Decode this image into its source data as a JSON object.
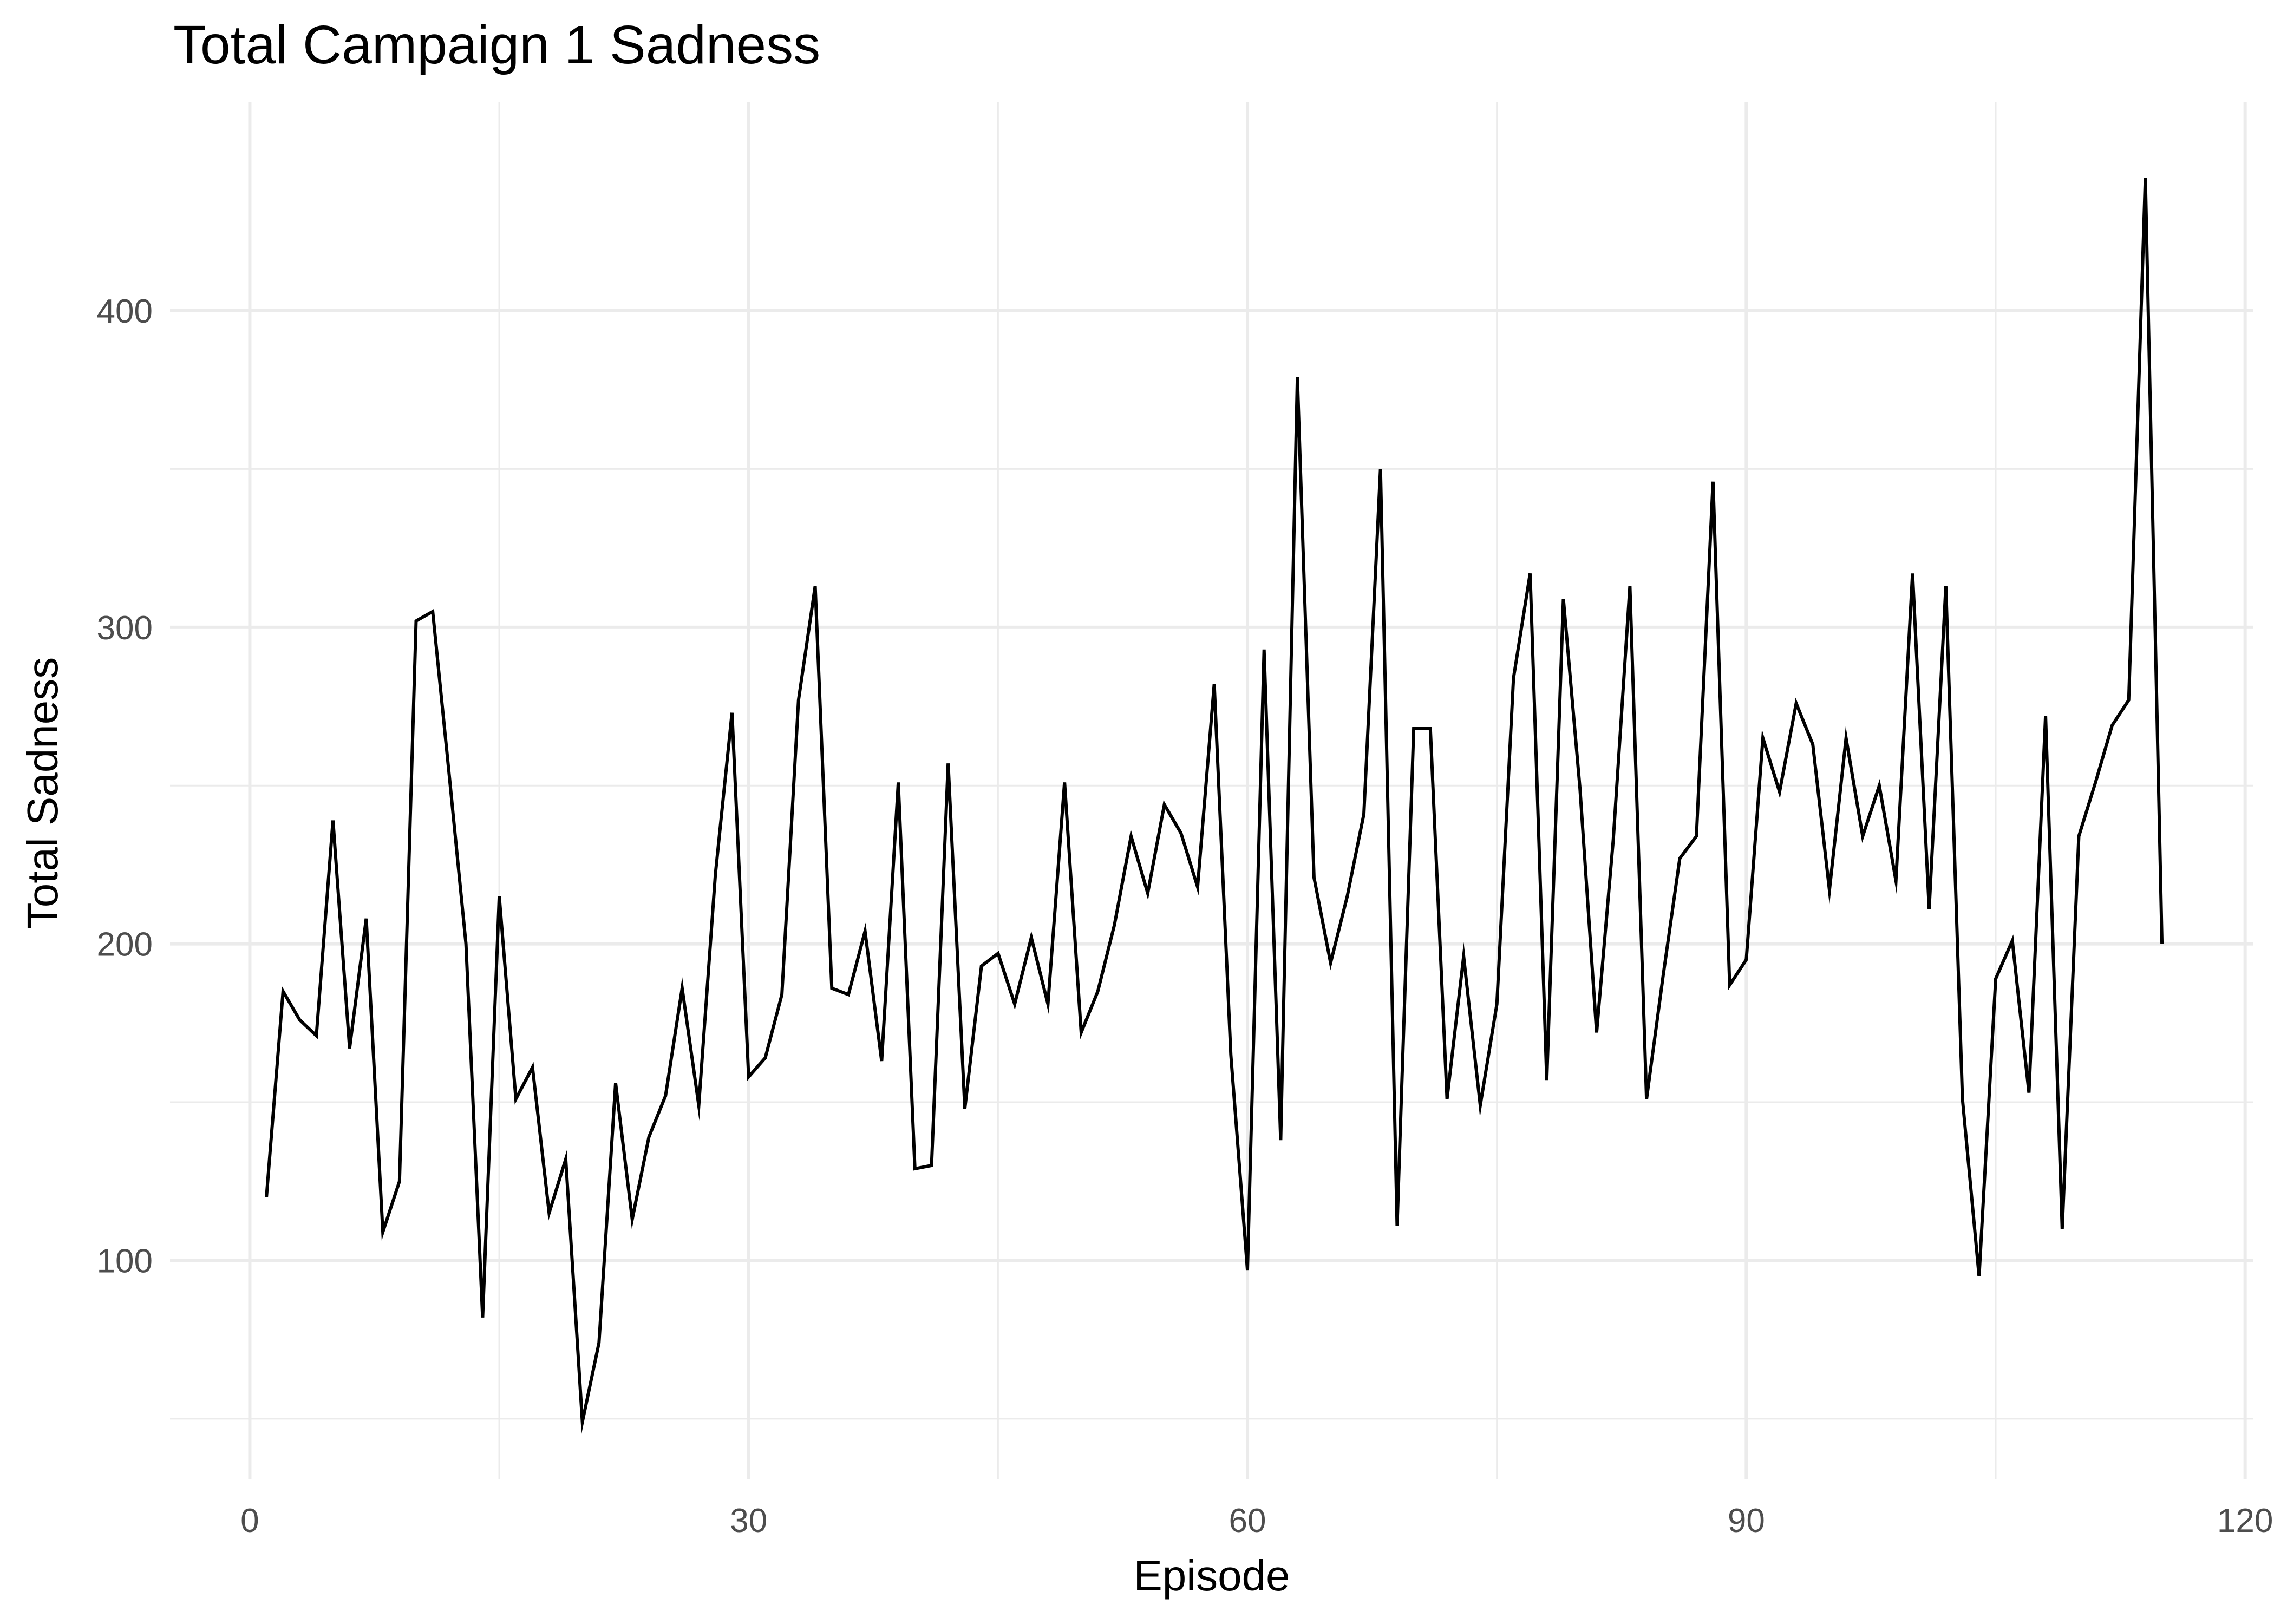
{
  "chart_data": {
    "type": "line",
    "title": "Total Campaign 1 Sadness",
    "xlabel": "Episode",
    "ylabel": "Total Sadness",
    "xlim": [
      -4.8,
      120.5
    ],
    "ylim": [
      31,
      466
    ],
    "x_ticks": [
      0,
      30,
      60,
      90,
      120
    ],
    "y_ticks": [
      100,
      200,
      300,
      400
    ],
    "x_minor": [
      15,
      45,
      75,
      105
    ],
    "y_minor": [
      50,
      150,
      250,
      350
    ],
    "grid": true,
    "legend": "none",
    "line_color": "#000000",
    "grid_color": "#ebebeb",
    "series": [
      {
        "x": [
          1,
          2,
          3,
          4,
          5,
          6,
          7,
          8,
          9,
          10,
          11,
          12,
          13,
          14,
          15,
          16,
          17,
          18,
          19,
          20,
          21,
          22,
          23,
          24,
          25,
          26,
          27,
          28,
          29,
          30,
          31,
          32,
          33,
          34,
          35,
          36,
          37,
          38,
          39,
          40,
          41,
          42,
          43,
          44,
          45,
          46,
          47,
          48,
          49,
          50,
          51,
          52,
          53,
          54,
          55,
          56,
          57,
          58,
          59,
          60,
          61,
          62,
          63,
          64,
          65,
          66,
          67,
          68,
          69,
          70,
          71,
          72,
          73,
          74,
          75,
          76,
          77,
          78,
          79,
          80,
          81,
          82,
          83,
          84,
          85,
          86,
          87,
          88,
          89,
          90,
          91,
          92,
          93,
          94,
          95,
          96,
          97,
          98,
          99,
          100,
          101,
          102,
          103,
          104,
          105,
          106,
          107,
          108,
          109,
          110,
          111,
          112,
          113,
          114,
          115
        ],
        "values": [
          120,
          185,
          176,
          171,
          239,
          167,
          208,
          109,
          125,
          302,
          305,
          253,
          200,
          82,
          215,
          151,
          161,
          115,
          132,
          49,
          74,
          156,
          113,
          139,
          152,
          186,
          149,
          222,
          273,
          158,
          164,
          184,
          277,
          313,
          186,
          184,
          204,
          163,
          251,
          129,
          130,
          257,
          148,
          193,
          197,
          181,
          202,
          181,
          251,
          172,
          185,
          206,
          234,
          216,
          244,
          235,
          218,
          282,
          165,
          97,
          293,
          138,
          379,
          221,
          194,
          215,
          241,
          350,
          111,
          268,
          268,
          151,
          196,
          149,
          181,
          284,
          317,
          157,
          309,
          249,
          172,
          233,
          313,
          151,
          190,
          227,
          234,
          346,
          187,
          195,
          265,
          248,
          276,
          263,
          217,
          265,
          234,
          250,
          220,
          317,
          211,
          313,
          151,
          95,
          189,
          201,
          153,
          272,
          110,
          234,
          251,
          269,
          277,
          442,
          200
        ]
      }
    ]
  }
}
